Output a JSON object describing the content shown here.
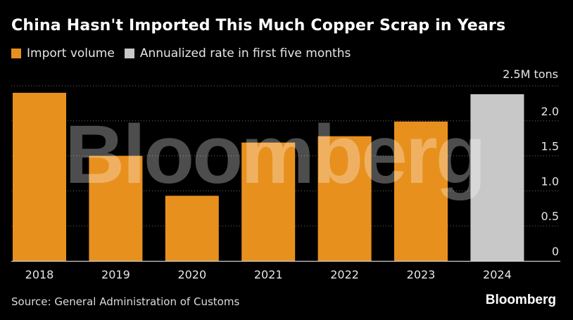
{
  "header": {
    "title": "China Hasn't Imported This Much Copper Scrap in Years"
  },
  "legend": {
    "items": [
      {
        "label": "Import volume",
        "color": "#e8901e"
      },
      {
        "label": "Annualized rate in first five months",
        "color": "#c8c8c8"
      }
    ]
  },
  "axis": {
    "unit_label": "2.5M tons"
  },
  "footer": {
    "source": "Source: General Administration of Customs",
    "brand": "Bloomberg"
  },
  "watermark": "Bloomberg",
  "colors": {
    "bar": "#e8901e",
    "highlight_bar": "#c8c8c8",
    "background": "#000000",
    "gridline": "#6a6a6a"
  },
  "chart_data": {
    "type": "bar",
    "title": "China Hasn't Imported This Much Copper Scrap in Years",
    "xlabel": "",
    "ylabel": "",
    "categories": [
      "2018",
      "2019",
      "2020",
      "2021",
      "2022",
      "2023",
      "2024"
    ],
    "values": [
      2.4,
      1.5,
      0.93,
      1.69,
      1.78,
      1.99,
      2.38
    ],
    "series_by_bar": [
      "Import volume",
      "Import volume",
      "Import volume",
      "Import volume",
      "Import volume",
      "Import volume",
      "Annualized rate in first five months"
    ],
    "ylim": [
      0,
      2.5
    ],
    "yticks": [
      "0",
      "0.5",
      "1.0",
      "1.5",
      "2.0"
    ],
    "top_tick_label": "2.5M tons",
    "grid": true,
    "legend_position": "top-left",
    "y_axis_side": "right"
  }
}
